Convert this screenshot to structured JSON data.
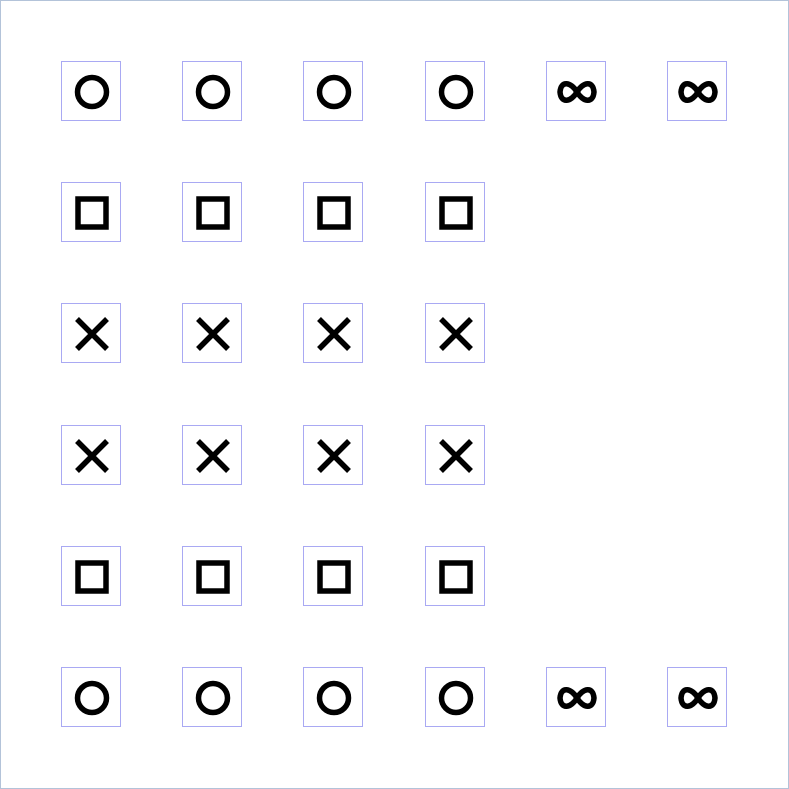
{
  "board": {
    "border_color": "#b3c3d9",
    "tile_border_color": "#a9a9f3",
    "symbol_color": "#000000",
    "rows": [
      [
        "circle-icon",
        "circle-icon",
        "circle-icon",
        "circle-icon",
        "infinity-icon",
        "infinity-icon"
      ],
      [
        "square-icon",
        "square-icon",
        "square-icon",
        "square-icon",
        "",
        ""
      ],
      [
        "cross-icon",
        "cross-icon",
        "cross-icon",
        "cross-icon",
        "",
        ""
      ],
      [
        "cross-icon",
        "cross-icon",
        "cross-icon",
        "cross-icon",
        "",
        ""
      ],
      [
        "square-icon",
        "square-icon",
        "square-icon",
        "square-icon",
        "",
        ""
      ],
      [
        "circle-icon",
        "circle-icon",
        "circle-icon",
        "circle-icon",
        "infinity-icon",
        "infinity-icon"
      ]
    ]
  }
}
